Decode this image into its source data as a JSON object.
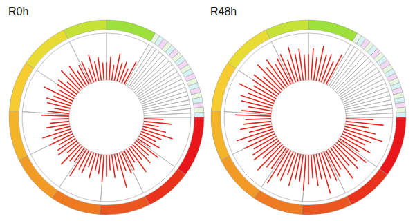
{
  "chart_data": [
    {
      "type": "circos",
      "title": "R0h",
      "color": "#e3231b",
      "tick_labels": false,
      "xlim": [
        0,
        360
      ],
      "ylim": [
        -0.85,
        1
      ],
      "x": [
        0,
        4,
        8,
        12,
        16,
        20,
        24,
        28,
        92,
        96,
        100,
        104,
        108,
        112,
        116,
        120,
        124,
        128,
        132,
        136,
        140,
        144,
        148,
        152,
        156,
        160,
        164,
        168,
        172,
        176,
        180,
        184,
        188,
        192,
        196,
        200,
        204,
        208,
        212,
        216,
        220,
        224,
        228,
        232,
        236,
        240,
        244,
        248,
        252,
        256,
        260,
        264,
        268,
        272,
        276,
        280,
        284,
        288,
        292,
        296,
        300,
        304,
        308,
        312,
        316,
        320,
        324,
        328,
        332,
        336,
        340,
        344,
        348,
        352,
        356
      ],
      "values": [
        0.35,
        0.5,
        0.3,
        0.6,
        0.4,
        0.45,
        0.3,
        0.55,
        0.4,
        0.6,
        0.3,
        0.5,
        0.7,
        0.45,
        0.35,
        0.5,
        0.3,
        0.6,
        0.4,
        0.55,
        0.35,
        0.65,
        0.3,
        0.45,
        0.5,
        0.4,
        0.8,
        0.35,
        0.5,
        0.3,
        0.45,
        0.6,
        0.4,
        0.35,
        0.55,
        0.3,
        0.5,
        0.45,
        0.7,
        0.35,
        0.4,
        0.6,
        0.3,
        0.5,
        0.45,
        0.35,
        0.55,
        0.4,
        0.65,
        0.3,
        0.5,
        0.4,
        0.35,
        0.6,
        0.45,
        0.3,
        0.5,
        0.55,
        0.4,
        0.7,
        0.35,
        0.45,
        0.5,
        0.3,
        0.6,
        0.4,
        0.55,
        0.35,
        0.45,
        0.5,
        0.3,
        0.6,
        0.4,
        0.5,
        0.35
      ],
      "ring": {
        "values": [
          30,
          3,
          3,
          3,
          3,
          3,
          3,
          3,
          3,
          3,
          3,
          3,
          3,
          3,
          3,
          3,
          3,
          3,
          3,
          3,
          3,
          36,
          28,
          30,
          30,
          30,
          30,
          30,
          30,
          26
        ],
        "colors": [
          "#9ee03a",
          "#e8f6e0",
          "#d6f2f2",
          "#f2d8f2",
          "#e8f6e0",
          "#d6f2f2",
          "#f2d8f2",
          "#e8f6e0",
          "#d6f2f2",
          "#f2d8f2",
          "#e8f6e0",
          "#d6f2f2",
          "#f2d8f2",
          "#e8f6e0",
          "#d6f2f2",
          "#f2d8f2",
          "#e8f6e0",
          "#d6f2f2",
          "#f2d8f2",
          "#e8f6e0",
          "#d6f2f2",
          "#e8161b",
          "#e8321b",
          "#ea5520",
          "#ee7a22",
          "#f29a26",
          "#f4b42a",
          "#f6cc30",
          "#e8dc34",
          "#c6e236"
        ]
      }
    },
    {
      "type": "circos",
      "title": "R48h",
      "color": "#e3231b",
      "tick_labels": false,
      "xlim": [
        0,
        360
      ],
      "ylim": [
        -0.85,
        1
      ],
      "x": [
        0,
        4,
        8,
        12,
        16,
        20,
        24,
        28,
        92,
        96,
        100,
        104,
        108,
        112,
        116,
        120,
        124,
        128,
        132,
        136,
        140,
        144,
        148,
        152,
        156,
        160,
        164,
        168,
        172,
        176,
        180,
        184,
        188,
        192,
        196,
        200,
        204,
        208,
        212,
        216,
        220,
        224,
        228,
        232,
        236,
        240,
        244,
        248,
        252,
        256,
        260,
        264,
        268,
        272,
        276,
        280,
        284,
        288,
        292,
        296,
        300,
        304,
        308,
        312,
        316,
        320,
        324,
        328,
        332,
        336,
        340,
        344,
        348,
        352,
        356
      ],
      "values": [
        0.55,
        0.7,
        0.5,
        0.8,
        0.6,
        0.65,
        0.5,
        0.75,
        0.6,
        0.85,
        0.5,
        0.7,
        0.9,
        0.65,
        0.55,
        0.75,
        0.5,
        0.8,
        0.6,
        0.75,
        0.55,
        0.85,
        0.5,
        0.65,
        0.7,
        0.6,
        0.95,
        0.55,
        0.7,
        0.5,
        0.65,
        0.8,
        0.6,
        0.55,
        0.75,
        0.5,
        0.7,
        0.65,
        0.9,
        0.55,
        0.6,
        0.8,
        0.5,
        0.7,
        0.65,
        0.55,
        0.75,
        0.6,
        0.85,
        0.5,
        0.7,
        0.6,
        0.55,
        0.8,
        0.65,
        0.5,
        0.7,
        0.75,
        0.6,
        0.9,
        0.55,
        0.65,
        0.7,
        0.5,
        0.8,
        0.6,
        0.75,
        0.55,
        0.65,
        0.7,
        0.5,
        0.8,
        0.6,
        0.7,
        0.55
      ],
      "ring": {
        "values": [
          30,
          3,
          3,
          3,
          3,
          3,
          3,
          3,
          3,
          3,
          3,
          3,
          3,
          3,
          3,
          3,
          3,
          3,
          3,
          3,
          3,
          36,
          28,
          30,
          30,
          30,
          30,
          30,
          30,
          26
        ],
        "colors": [
          "#9ee03a",
          "#e8f6e0",
          "#d6f2f2",
          "#f2d8f2",
          "#e8f6e0",
          "#d6f2f2",
          "#f2d8f2",
          "#e8f6e0",
          "#d6f2f2",
          "#f2d8f2",
          "#e8f6e0",
          "#d6f2f2",
          "#f2d8f2",
          "#e8f6e0",
          "#d6f2f2",
          "#f2d8f2",
          "#e8f6e0",
          "#d6f2f2",
          "#f2d8f2",
          "#e8f6e0",
          "#d6f2f2",
          "#e8161b",
          "#e8321b",
          "#ea5520",
          "#ee7a22",
          "#f29a26",
          "#f4b42a",
          "#f6cc30",
          "#e8dc34",
          "#c6e236"
        ]
      }
    }
  ]
}
